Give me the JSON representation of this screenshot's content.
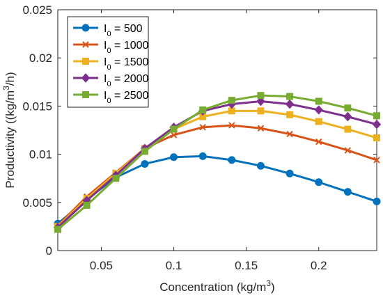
{
  "chart_data": {
    "type": "line",
    "title": "",
    "xlabel": "Concentration (kg/m",
    "xlabel_sup": "3",
    "xlabel_end": ")",
    "ylabel": "Productivity ((kg/m",
    "ylabel_sup": "3",
    "ylabel_end": "/h)",
    "xlim": [
      0.02,
      0.24
    ],
    "ylim": [
      0,
      0.025
    ],
    "xticks": [
      0.05,
      0.1,
      0.15,
      0.2
    ],
    "xtick_labels": [
      "0.05",
      "0.1",
      "0.15",
      "0.2"
    ],
    "yticks": [
      0,
      0.005,
      0.01,
      0.015,
      0.02,
      0.025
    ],
    "ytick_labels": [
      "0",
      "0.005",
      "0.01",
      "0.015",
      "0.02",
      "0.025"
    ],
    "grid": false,
    "legend_position": "top-left",
    "x": [
      0.02,
      0.04,
      0.06,
      0.08,
      0.1,
      0.12,
      0.14,
      0.16,
      0.18,
      0.2,
      0.22,
      0.24
    ],
    "series": [
      {
        "name_prefix": "I",
        "name_sub": "0",
        "name_suffix": " = 500",
        "color": "#0072BD",
        "marker": "circle",
        "values": [
          0.0028,
          0.0053,
          0.0076,
          0.009,
          0.0097,
          0.0098,
          0.0094,
          0.0088,
          0.008,
          0.0071,
          0.0061,
          0.0051
        ]
      },
      {
        "name_prefix": "I",
        "name_sub": "0",
        "name_suffix": " = 1000",
        "color": "#D95319",
        "marker": "x",
        "values": [
          0.0026,
          0.0056,
          0.0081,
          0.0106,
          0.012,
          0.0128,
          0.013,
          0.0127,
          0.0121,
          0.0113,
          0.0104,
          0.0094
        ]
      },
      {
        "name_prefix": "I",
        "name_sub": "0",
        "name_suffix": " = 1500",
        "color": "#EDB120",
        "marker": "square",
        "values": [
          0.0025,
          0.0054,
          0.008,
          0.0106,
          0.0126,
          0.0139,
          0.0145,
          0.0145,
          0.0141,
          0.0134,
          0.0126,
          0.0117
        ]
      },
      {
        "name_prefix": "I",
        "name_sub": "0",
        "name_suffix": " = 2000",
        "color": "#7E2F8E",
        "marker": "diamond",
        "values": [
          0.0024,
          0.0052,
          0.0078,
          0.0106,
          0.0128,
          0.0145,
          0.0152,
          0.0155,
          0.0152,
          0.0146,
          0.0139,
          0.0131
        ]
      },
      {
        "name_prefix": "I",
        "name_sub": "0",
        "name_suffix": " = 2500",
        "color": "#77AC30",
        "marker": "square",
        "values": [
          0.0022,
          0.0047,
          0.0075,
          0.0103,
          0.0126,
          0.0146,
          0.0156,
          0.0161,
          0.016,
          0.0155,
          0.0148,
          0.014
        ]
      }
    ]
  }
}
